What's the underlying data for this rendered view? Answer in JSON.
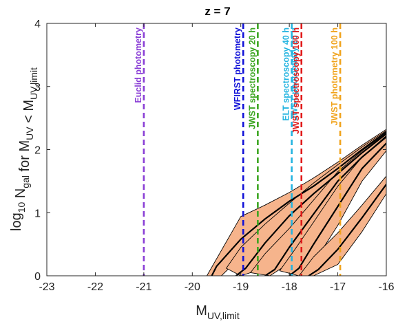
{
  "chart_data": {
    "type": "line",
    "title": "z = 7",
    "xlabel": {
      "main": "M",
      "sub": "UV,limit"
    },
    "ylabel": {
      "prefix": "log",
      "prefix_sub": "10",
      "n": " N",
      "n_sub": "gal",
      "mid": " for M",
      "mid_sub": "UV",
      "tail": " < M",
      "tail_sub": "UV,limit"
    },
    "xlim": [
      -23,
      -16
    ],
    "ylim": [
      0,
      4
    ],
    "xticks": [
      -23,
      -22,
      -21,
      -20,
      -19,
      -18,
      -17,
      -16
    ],
    "yticks": [
      0,
      1,
      2,
      3,
      4
    ],
    "grid": false,
    "colors": {
      "band_fill": "#f6b48c",
      "band_edge": "#000000",
      "median": "#000000"
    },
    "reference_lines": [
      {
        "x": -21.0,
        "label": "Euclid photometry",
        "color": "#8a3ed6"
      },
      {
        "x": -18.95,
        "label": "WFIRST photometry",
        "color": "#1010d8"
      },
      {
        "x": -18.65,
        "label": "JWST spectroscopy 20 h",
        "color": "#3aa51f"
      },
      {
        "x": -17.95,
        "label": "ELT spectroscopy 40 h",
        "color": "#24b4e0"
      },
      {
        "x": -17.95,
        "label": "JWST photometry 20 h",
        "color": "#24b4e0"
      },
      {
        "x": -17.75,
        "label": "JWST spectroscopy 100 h",
        "color": "#e01a1a"
      },
      {
        "x": -16.95,
        "label": "JWST photometry 100 h",
        "color": "#f0a21a"
      }
    ],
    "bands": [
      {
        "median": [
          [
            -19.6,
            0.0
          ],
          [
            -19.5,
            0.15
          ],
          [
            -19.0,
            0.58
          ],
          [
            -18.5,
            0.9
          ],
          [
            -18.0,
            1.18
          ],
          [
            -17.5,
            1.42
          ],
          [
            -17.0,
            1.7
          ],
          [
            -16.5,
            2.0
          ],
          [
            -16.0,
            2.28
          ]
        ],
        "upper": [
          [
            -19.0,
            0.94
          ],
          [
            -18.5,
            1.12
          ],
          [
            -18.0,
            1.32
          ],
          [
            -17.5,
            1.55
          ],
          [
            -17.0,
            1.8
          ],
          [
            -16.5,
            2.07
          ],
          [
            -16.0,
            2.32
          ]
        ],
        "lower": [
          [
            -19.7,
            0.0
          ],
          [
            -19.4,
            0.0
          ],
          [
            -19.0,
            0.3
          ],
          [
            -18.5,
            0.7
          ],
          [
            -18.0,
            1.02
          ],
          [
            -17.5,
            1.3
          ],
          [
            -17.0,
            1.6
          ],
          [
            -16.5,
            1.93
          ],
          [
            -16.0,
            2.22
          ]
        ]
      },
      {
        "median": [
          [
            -19.1,
            0.0
          ],
          [
            -18.9,
            0.12
          ],
          [
            -18.5,
            0.52
          ],
          [
            -18.0,
            0.95
          ],
          [
            -17.5,
            1.3
          ],
          [
            -17.0,
            1.62
          ],
          [
            -16.5,
            1.95
          ],
          [
            -16.0,
            2.25
          ]
        ],
        "upper": [
          [
            -19.3,
            0.12
          ],
          [
            -19.0,
            0.45
          ],
          [
            -18.5,
            0.82
          ],
          [
            -18.0,
            1.15
          ],
          [
            -17.5,
            1.47
          ],
          [
            -17.0,
            1.76
          ],
          [
            -16.5,
            2.04
          ],
          [
            -16.0,
            2.3
          ]
        ],
        "lower": [
          [
            -19.0,
            0.0
          ],
          [
            -18.6,
            0.1
          ],
          [
            -18.0,
            0.68
          ],
          [
            -17.5,
            1.1
          ],
          [
            -17.0,
            1.5
          ],
          [
            -16.5,
            1.85
          ],
          [
            -16.0,
            2.18
          ]
        ]
      },
      {
        "median": [
          [
            -18.5,
            0.0
          ],
          [
            -18.3,
            0.1
          ],
          [
            -18.0,
            0.45
          ],
          [
            -17.5,
            0.98
          ],
          [
            -17.0,
            1.5
          ],
          [
            -16.5,
            1.88
          ],
          [
            -16.0,
            2.2
          ]
        ],
        "upper": [
          [
            -18.8,
            0.05
          ],
          [
            -18.5,
            0.35
          ],
          [
            -18.0,
            0.75
          ],
          [
            -17.5,
            1.2
          ],
          [
            -17.0,
            1.65
          ],
          [
            -16.5,
            1.98
          ],
          [
            -16.0,
            2.26
          ]
        ],
        "lower": [
          [
            -18.4,
            0.0
          ],
          [
            -18.0,
            0.2
          ],
          [
            -17.5,
            0.75
          ],
          [
            -17.0,
            1.35
          ],
          [
            -16.5,
            1.77
          ],
          [
            -16.0,
            2.12
          ]
        ]
      },
      {
        "median": [
          [
            -18.0,
            0.0
          ],
          [
            -17.8,
            0.12
          ],
          [
            -17.5,
            0.5
          ],
          [
            -17.0,
            1.1
          ],
          [
            -16.5,
            1.7
          ],
          [
            -16.0,
            2.1
          ]
        ],
        "upper": [
          [
            -18.2,
            0.08
          ],
          [
            -17.9,
            0.4
          ],
          [
            -17.5,
            0.85
          ],
          [
            -17.0,
            1.42
          ],
          [
            -16.5,
            1.88
          ],
          [
            -16.0,
            2.22
          ]
        ],
        "lower": [
          [
            -17.8,
            0.0
          ],
          [
            -17.5,
            0.2
          ],
          [
            -17.0,
            0.8
          ],
          [
            -16.5,
            1.5
          ],
          [
            -16.0,
            1.98
          ]
        ]
      },
      {
        "median": [
          [
            -17.6,
            0.0
          ],
          [
            -17.4,
            0.1
          ],
          [
            -17.0,
            0.42
          ],
          [
            -16.5,
            0.92
          ],
          [
            -16.0,
            1.45
          ]
        ],
        "upper": [
          [
            -17.8,
            0.0
          ],
          [
            -17.5,
            0.3
          ],
          [
            -17.0,
            0.68
          ],
          [
            -16.5,
            1.12
          ],
          [
            -16.0,
            1.58
          ]
        ],
        "lower": [
          [
            -17.5,
            0.0
          ],
          [
            -17.0,
            0.18
          ],
          [
            -16.5,
            0.7
          ],
          [
            -16.0,
            1.3
          ]
        ]
      }
    ]
  }
}
